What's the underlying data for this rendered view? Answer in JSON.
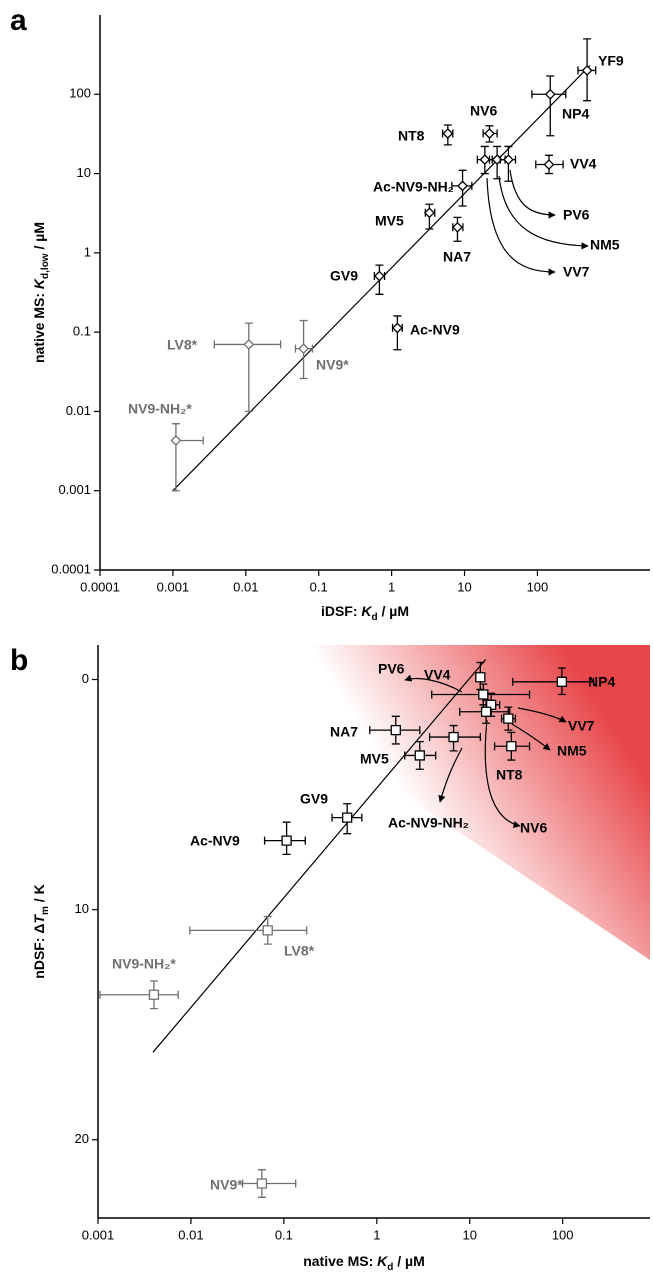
{
  "chart_data": [
    {
      "type": "scatter",
      "panel": "a",
      "xlabel": [
        "iDSF: ",
        "K",
        "d",
        " / µM"
      ],
      "ylabel": [
        "native MS: ",
        "K",
        "d,low",
        " / µM"
      ],
      "log_x": true,
      "log_y": true,
      "y_inverted": false,
      "xlim": [
        0.0001,
        3500
      ],
      "ylim": [
        0.0001,
        1000
      ],
      "xticks": [
        0.0001,
        0.001,
        0.01,
        0.1,
        1,
        10,
        100
      ],
      "yticks": [
        0.0001,
        0.001,
        0.01,
        0.1,
        1,
        10,
        100
      ],
      "marker": "diamond",
      "points": {
        "labels": [
          "YF9",
          "NP4",
          "NV6",
          "NT8",
          "VV7",
          "NM5",
          "PV6",
          "VV4",
          "Ac-NV9-NH₂",
          "MV5",
          "NA7",
          "GV9",
          "Ac-NV9",
          "LV8*",
          "NV9*",
          "NV9-NH₂*"
        ],
        "x": [
          480,
          150,
          22,
          5.9,
          19,
          28,
          40,
          144,
          9.4,
          3.3,
          8,
          0.68,
          1.2,
          0.011,
          0.062,
          0.0011
        ],
        "x_low": [
          360,
          84,
          18,
          5.0,
          15,
          22,
          31,
          95,
          6.7,
          2.9,
          6.9,
          0.58,
          1.03,
          0.0037,
          0.048,
          0.0011
        ],
        "x_high": [
          630,
          245,
          28,
          6.9,
          24,
          36,
          50,
          225,
          12.6,
          3.9,
          9.5,
          0.8,
          1.4,
          0.03,
          0.082,
          0.0026
        ],
        "y": [
          200,
          100,
          32,
          32,
          15,
          15,
          15,
          13,
          7,
          3.2,
          2.1,
          0.51,
          0.113,
          0.07,
          0.062,
          0.0043
        ],
        "y_low": [
          83,
          30,
          25,
          23,
          10,
          8.6,
          8,
          10,
          3.9,
          2.0,
          1.4,
          0.3,
          0.06,
          0.01,
          0.026,
          0.001
        ],
        "y_high": [
          500,
          170,
          40,
          41,
          22,
          22,
          22,
          17,
          11,
          4.1,
          2.8,
          0.7,
          0.16,
          0.13,
          0.14,
          0.007
        ],
        "colors": [
          "#000000",
          "#000000",
          "#000000",
          "#000000",
          "#000000",
          "#000000",
          "#000000",
          "#000000",
          "#000000",
          "#000000",
          "#000000",
          "#000000",
          "#000000",
          "#707070",
          "#707070",
          "#707070"
        ]
      },
      "fit_line": {
        "x": [
          0.001,
          525
        ],
        "y": [
          0.001,
          230
        ]
      }
    },
    {
      "type": "scatter",
      "panel": "b",
      "xlabel": [
        "native MS: ",
        "K",
        "d",
        " / µM"
      ],
      "ylabel": [
        "nDSF: Δ",
        "T",
        "m",
        " / K"
      ],
      "log_x": true,
      "log_y": false,
      "y_inverted": true,
      "xlim": [
        0.001,
        870
      ],
      "ylim": [
        -1.5,
        23.4
      ],
      "xticks": [
        0.001,
        0.01,
        0.1,
        1,
        10,
        100
      ],
      "yticks": [
        0,
        10,
        20
      ],
      "marker": "square",
      "points": {
        "labels": [
          "NP4",
          "VV4",
          "PV6",
          "VV7",
          "NV6",
          "NM5",
          "NT8",
          "Ac-NV9-NH₂",
          "MV5",
          "NA7",
          "GV9",
          "Ac-NV9",
          "LV8*",
          "NV9-NH₂*",
          "NV9*"
        ],
        "x": [
          98,
          13,
          14,
          17,
          15,
          26,
          28,
          6.7,
          2.9,
          1.6,
          0.48,
          0.107,
          0.067,
          0.004,
          0.058
        ],
        "x_low": [
          29,
          12,
          3.9,
          14,
          7.8,
          22,
          18.5,
          3.7,
          2.0,
          0.84,
          0.33,
          0.062,
          0.0097,
          0.00105,
          0.036
        ],
        "x_high": [
          215,
          14.5,
          44,
          21,
          27,
          31,
          44,
          13,
          4.3,
          2.9,
          0.69,
          0.17,
          0.176,
          0.0073,
          0.134
        ],
        "y": [
          0.1,
          -0.1,
          0.65,
          1.1,
          1.4,
          1.7,
          2.9,
          2.5,
          3.3,
          2.2,
          6.0,
          7.0,
          10.9,
          13.7,
          21.9
        ],
        "y_low": [
          -0.5,
          -0.74,
          0.2,
          0.6,
          0.9,
          1.2,
          2.3,
          2.0,
          2.7,
          1.6,
          5.4,
          6.2,
          10.3,
          13.1,
          21.3
        ],
        "y_high": [
          0.65,
          0.43,
          1.1,
          1.6,
          1.9,
          2.2,
          3.5,
          3.1,
          3.9,
          2.8,
          6.7,
          7.6,
          11.5,
          14.3,
          22.5
        ],
        "colors": [
          "#000000",
          "#000000",
          "#000000",
          "#000000",
          "#000000",
          "#000000",
          "#000000",
          "#000000",
          "#000000",
          "#000000",
          "#000000",
          "#000000",
          "#707070",
          "#707070",
          "#707070"
        ]
      },
      "fit_line": {
        "x": [
          0.0039,
          14.8
        ],
        "y": [
          16.2,
          -0.87
        ]
      }
    }
  ]
}
